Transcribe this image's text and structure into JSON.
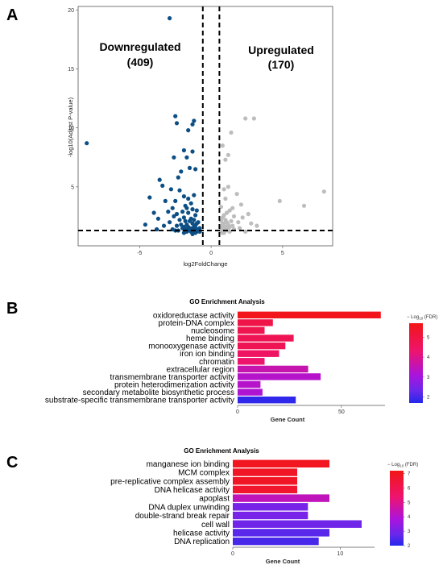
{
  "panels": {
    "a": "A",
    "b": "B",
    "c": "C"
  },
  "chart_data": [
    {
      "type": "scatter",
      "panel": "A",
      "title": "",
      "xlabel": "log2FoldChange",
      "ylabel": "-log10(Adjust P-value)",
      "xlim": [
        -9.3,
        8.5
      ],
      "ylim": [
        0,
        20.3
      ],
      "xticks": [
        -5,
        0,
        5
      ],
      "yticks": [
        5,
        10,
        15,
        20
      ],
      "thresholds": {
        "x": [
          -0.58,
          0.58
        ],
        "y": 1.3
      },
      "annotations": [
        {
          "text": "Downregulated",
          "count": "(409)"
        },
        {
          "text": "Upregulated",
          "count": "(170)"
        }
      ],
      "colors": {
        "down": "#0d4f85",
        "up": "#bdbdbd"
      },
      "series": [
        {
          "name": "Downregulated",
          "x": [
            -2.9,
            -8.7,
            -2.5,
            -1.2,
            -1.3,
            -2.4,
            -1.6,
            -1.9,
            -1.3,
            -2.6,
            -1.7,
            -2.1,
            -1.5,
            -1.1,
            -2.3,
            -3.6,
            -3.4,
            -2.8,
            -2.2,
            -4.3,
            -1.9,
            -1.6,
            -1.2,
            -3.2,
            -2.5,
            -1.8,
            -1.4,
            -2.7,
            -1.0,
            -1.3,
            -1.7,
            -2.0,
            -4.0,
            -3.0,
            -2.4,
            -1.6,
            -1.1,
            -1.9,
            -2.6,
            -3.7,
            -1.4,
            -1.2,
            -2.2,
            -1.8,
            -1.5,
            -0.9,
            -1.0,
            -1.3,
            -2.9,
            -4.6,
            -2.1,
            -1.7,
            -1.1,
            -3.3,
            -2.4,
            -1.6,
            -1.9,
            -1.2,
            -0.8,
            -1.5,
            -2.0,
            -1.3,
            -1.0,
            -2.7,
            -1.8,
            -1.4,
            -3.8,
            -2.3,
            -1.1,
            -0.9,
            -1.6,
            -1.2,
            -2.5,
            -1.0,
            -1.4,
            -1.7,
            -0.8,
            -1.9,
            -1.1,
            -1.3
          ],
          "y": [
            19.3,
            8.7,
            11.0,
            10.6,
            10.3,
            10.4,
            9.8,
            8.1,
            8.0,
            7.5,
            7.5,
            6.3,
            6.6,
            6.5,
            5.8,
            5.6,
            5.1,
            4.8,
            4.7,
            4.1,
            4.2,
            4.0,
            4.3,
            3.8,
            3.8,
            3.4,
            3.6,
            3.2,
            3.0,
            3.1,
            3.2,
            2.9,
            2.8,
            2.9,
            2.7,
            2.8,
            2.6,
            2.4,
            2.5,
            2.3,
            2.3,
            2.2,
            2.2,
            2.1,
            2.1,
            2.0,
            1.9,
            1.9,
            2.0,
            1.8,
            1.8,
            1.8,
            1.7,
            1.7,
            1.7,
            1.6,
            1.6,
            1.6,
            1.5,
            1.5,
            1.5,
            1.5,
            1.4,
            1.4,
            1.4,
            1.4,
            1.4,
            1.3,
            1.3,
            1.3,
            1.3,
            1.3,
            1.3,
            1.2,
            1.2,
            1.2,
            1.2,
            1.1,
            1.1,
            1.0
          ]
        },
        {
          "name": "Upregulated",
          "x": [
            2.4,
            3.0,
            1.4,
            0.8,
            1.0,
            1.2,
            7.9,
            6.5,
            4.8,
            1.2,
            0.9,
            1.8,
            2.1,
            1.0,
            1.5,
            0.7,
            1.3,
            2.6,
            1.1,
            0.9,
            1.6,
            0.8,
            2.2,
            1.0,
            1.4,
            0.7,
            1.9,
            1.1,
            2.8,
            0.9,
            1.2,
            0.8,
            1.5,
            3.2,
            1.0,
            0.7,
            1.3,
            0.9,
            2.0,
            1.1,
            0.8,
            1.6,
            0.9,
            1.2,
            1.0,
            0.7,
            2.4,
            1.3,
            0.8,
            0.9
          ],
          "y": [
            10.8,
            10.8,
            9.6,
            8.5,
            7.3,
            7.7,
            4.6,
            3.4,
            3.8,
            5.0,
            4.8,
            4.4,
            3.5,
            4.0,
            3.2,
            3.3,
            3.0,
            2.7,
            2.8,
            2.6,
            2.5,
            2.4,
            2.4,
            2.2,
            2.1,
            2.1,
            2.0,
            2.0,
            1.9,
            1.9,
            1.8,
            1.8,
            1.7,
            1.7,
            1.6,
            1.6,
            1.6,
            1.5,
            1.5,
            1.5,
            1.4,
            1.4,
            1.4,
            1.3,
            1.3,
            1.3,
            1.2,
            1.2,
            1.1,
            1.1
          ]
        }
      ]
    },
    {
      "type": "bar",
      "panel": "B",
      "orientation": "horizontal",
      "title": "GO Enrichment Analysis",
      "xlabel": "Gene Count",
      "ylabel": "",
      "xlim": [
        0,
        71
      ],
      "xticks": [
        0,
        50
      ],
      "categories": [
        "oxidoreductase activity",
        "protein-DNA complex",
        "nucleosome",
        "heme binding",
        "monooxygenase activity",
        "iron ion binding",
        "chromatin",
        "extracellular region",
        "transmembrane transporter activity",
        "protein heterodimerization activity",
        "secondary metabolite biosynthetic process",
        "substrate-specific transmembrane transporter activity"
      ],
      "values": [
        69,
        17,
        13,
        27,
        23,
        20,
        13,
        34,
        40,
        11,
        12,
        28
      ],
      "color_values": [
        5.6,
        4.9,
        4.8,
        4.7,
        4.7,
        4.5,
        4.3,
        3.6,
        3.3,
        3.3,
        3.2,
        1.8
      ],
      "legend": {
        "title": "− Log10 (FDR)",
        "title_sub": "10",
        "ticks": [
          2,
          3,
          4,
          5
        ],
        "min": 1.7,
        "max": 5.7,
        "placement": "right"
      }
    },
    {
      "type": "bar",
      "panel": "C",
      "orientation": "horizontal",
      "title": "GO Enrichment Analysis",
      "xlabel": "Gene Count",
      "ylabel": "",
      "xlim": [
        0,
        13.2
      ],
      "xticks": [
        0,
        10
      ],
      "categories": [
        "manganese ion binding",
        "MCM complex",
        "pre-replicative complex assembly",
        "DNA helicase activity",
        "apoplast",
        "DNA duplex unwinding",
        "double-strand break repair",
        "cell wall",
        "helicase activity",
        "DNA replication"
      ],
      "values": [
        9,
        6,
        6,
        6,
        9,
        7,
        7,
        12,
        9,
        8
      ],
      "color_values": [
        7.0,
        6.9,
        6.9,
        6.7,
        4.3,
        3.0,
        3.0,
        2.9,
        2.6,
        2.4
      ],
      "legend": {
        "title": "− Log10 (FDR)",
        "title_sub": "10",
        "ticks": [
          2,
          3,
          4,
          5,
          6,
          7
        ],
        "min": 2,
        "max": 7.2,
        "placement": "right"
      }
    }
  ]
}
